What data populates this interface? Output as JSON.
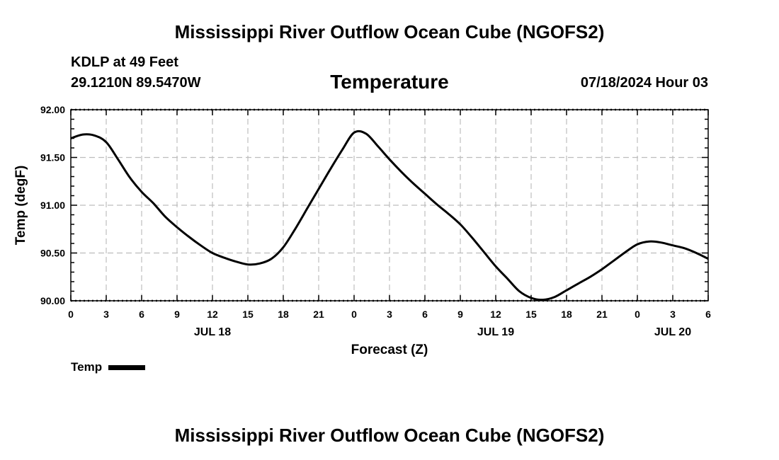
{
  "page": {
    "title_top": "Mississippi River Outflow Ocean Cube (NGOFS2)",
    "title_bottom": "Mississippi River Outflow Ocean Cube (NGOFS2)",
    "station": "KDLP at 49 Feet",
    "coords": "29.1210N  89.5470W",
    "datetime": "07/18/2024 Hour 03"
  },
  "chart_data": {
    "type": "line",
    "title": "Temperature",
    "xlabel": "Forecast (Z)",
    "ylabel": "Temp (degF)",
    "xlim": [
      0,
      54
    ],
    "ylim": [
      90.0,
      92.0
    ],
    "y_ticks": [
      "90.00",
      "90.50",
      "91.00",
      "91.50",
      "92.00"
    ],
    "x_tick_labels": [
      "0",
      "3",
      "6",
      "9",
      "12",
      "15",
      "18",
      "21",
      "0",
      "3",
      "6",
      "9",
      "12",
      "15",
      "18",
      "21",
      "0",
      "3",
      "6"
    ],
    "day_labels": [
      {
        "hour": 12,
        "label": "JUL 18"
      },
      {
        "hour": 36,
        "label": "JUL 19"
      },
      {
        "hour": 51,
        "label": "JUL 20"
      }
    ],
    "grid": true,
    "legend_position": "bottom-left",
    "series": [
      {
        "name": "Temp",
        "color": "#000000",
        "x": [
          0,
          1,
          2,
          3,
          4,
          5,
          6,
          7,
          8,
          9,
          10,
          11,
          12,
          13,
          14,
          15,
          16,
          17,
          18,
          19,
          20,
          21,
          22,
          23,
          24,
          25,
          26,
          27,
          28,
          29,
          30,
          31,
          32,
          33,
          34,
          35,
          36,
          37,
          38,
          39,
          40,
          41,
          42,
          43,
          44,
          45,
          46,
          47,
          48,
          49,
          50,
          51,
          52,
          53,
          54
        ],
        "values": [
          91.7,
          91.74,
          91.73,
          91.66,
          91.48,
          91.29,
          91.14,
          91.02,
          90.88,
          90.77,
          90.67,
          90.58,
          90.5,
          90.45,
          90.41,
          90.38,
          90.39,
          90.44,
          90.56,
          90.75,
          90.96,
          91.17,
          91.38,
          91.58,
          91.76,
          91.75,
          91.62,
          91.48,
          91.35,
          91.23,
          91.12,
          91.01,
          90.91,
          90.8,
          90.66,
          90.51,
          90.36,
          90.23,
          90.1,
          90.03,
          90.01,
          90.04,
          90.11,
          90.18,
          90.25,
          90.33,
          90.42,
          90.51,
          90.59,
          90.62,
          90.61,
          90.58,
          90.55,
          90.5,
          90.44
        ]
      }
    ]
  }
}
